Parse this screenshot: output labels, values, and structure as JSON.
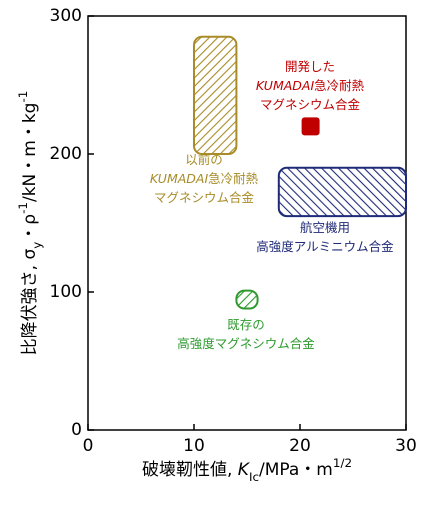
{
  "chart_data": {
    "type": "ashby",
    "x_label": [
      "破壊靭性値, ",
      {
        "text": "K",
        "italic": true
      },
      {
        "text": "Ic",
        "sub": true
      },
      "/MPa・m",
      {
        "text": "1/2",
        "sup": true
      }
    ],
    "y_label": [
      "比降伏強さ, σ",
      {
        "text": "y",
        "sub": true
      },
      "・ρ",
      {
        "text": "-1",
        "sup": true
      },
      "/kN・m・kg",
      {
        "text": "-1",
        "sup": true
      }
    ],
    "xlim": [
      0,
      30
    ],
    "xticks": [
      0,
      10,
      20,
      30
    ],
    "ylim": [
      0,
      300
    ],
    "yticks": [
      0,
      100,
      200,
      300
    ],
    "regions": [
      {
        "label_lines": [
          [
            "以前の"
          ],
          [
            {
              "text": "KUMADAI",
              "italic": true
            },
            "急冷耐熱"
          ],
          [
            "マグネシウム合金"
          ]
        ],
        "color": "#a88c28",
        "x": [
          10,
          14
        ],
        "y": [
          200,
          285
        ],
        "hatch": "/"
      },
      {
        "label_lines": [
          [
            "航空機用"
          ],
          [
            "高強度アルミニウム合金"
          ]
        ],
        "color": "#1f2a78",
        "x": [
          18,
          30
        ],
        "y": [
          155,
          190
        ],
        "hatch": "\\"
      },
      {
        "label_lines": [
          [
            "既存の"
          ],
          [
            "高強度マグネシウム合金"
          ]
        ],
        "color": "#2e9a2e",
        "x": [
          14,
          16
        ],
        "y": [
          88,
          101
        ],
        "hatch": "/"
      }
    ],
    "points": [
      {
        "label_lines": [
          [
            "開発した"
          ],
          [
            {
              "text": "KUMADAI",
              "italic": true
            },
            "急冷耐熱"
          ],
          [
            "マグネシウム合金"
          ]
        ],
        "color": "#c00000",
        "x": 21,
        "y": 220
      }
    ]
  }
}
